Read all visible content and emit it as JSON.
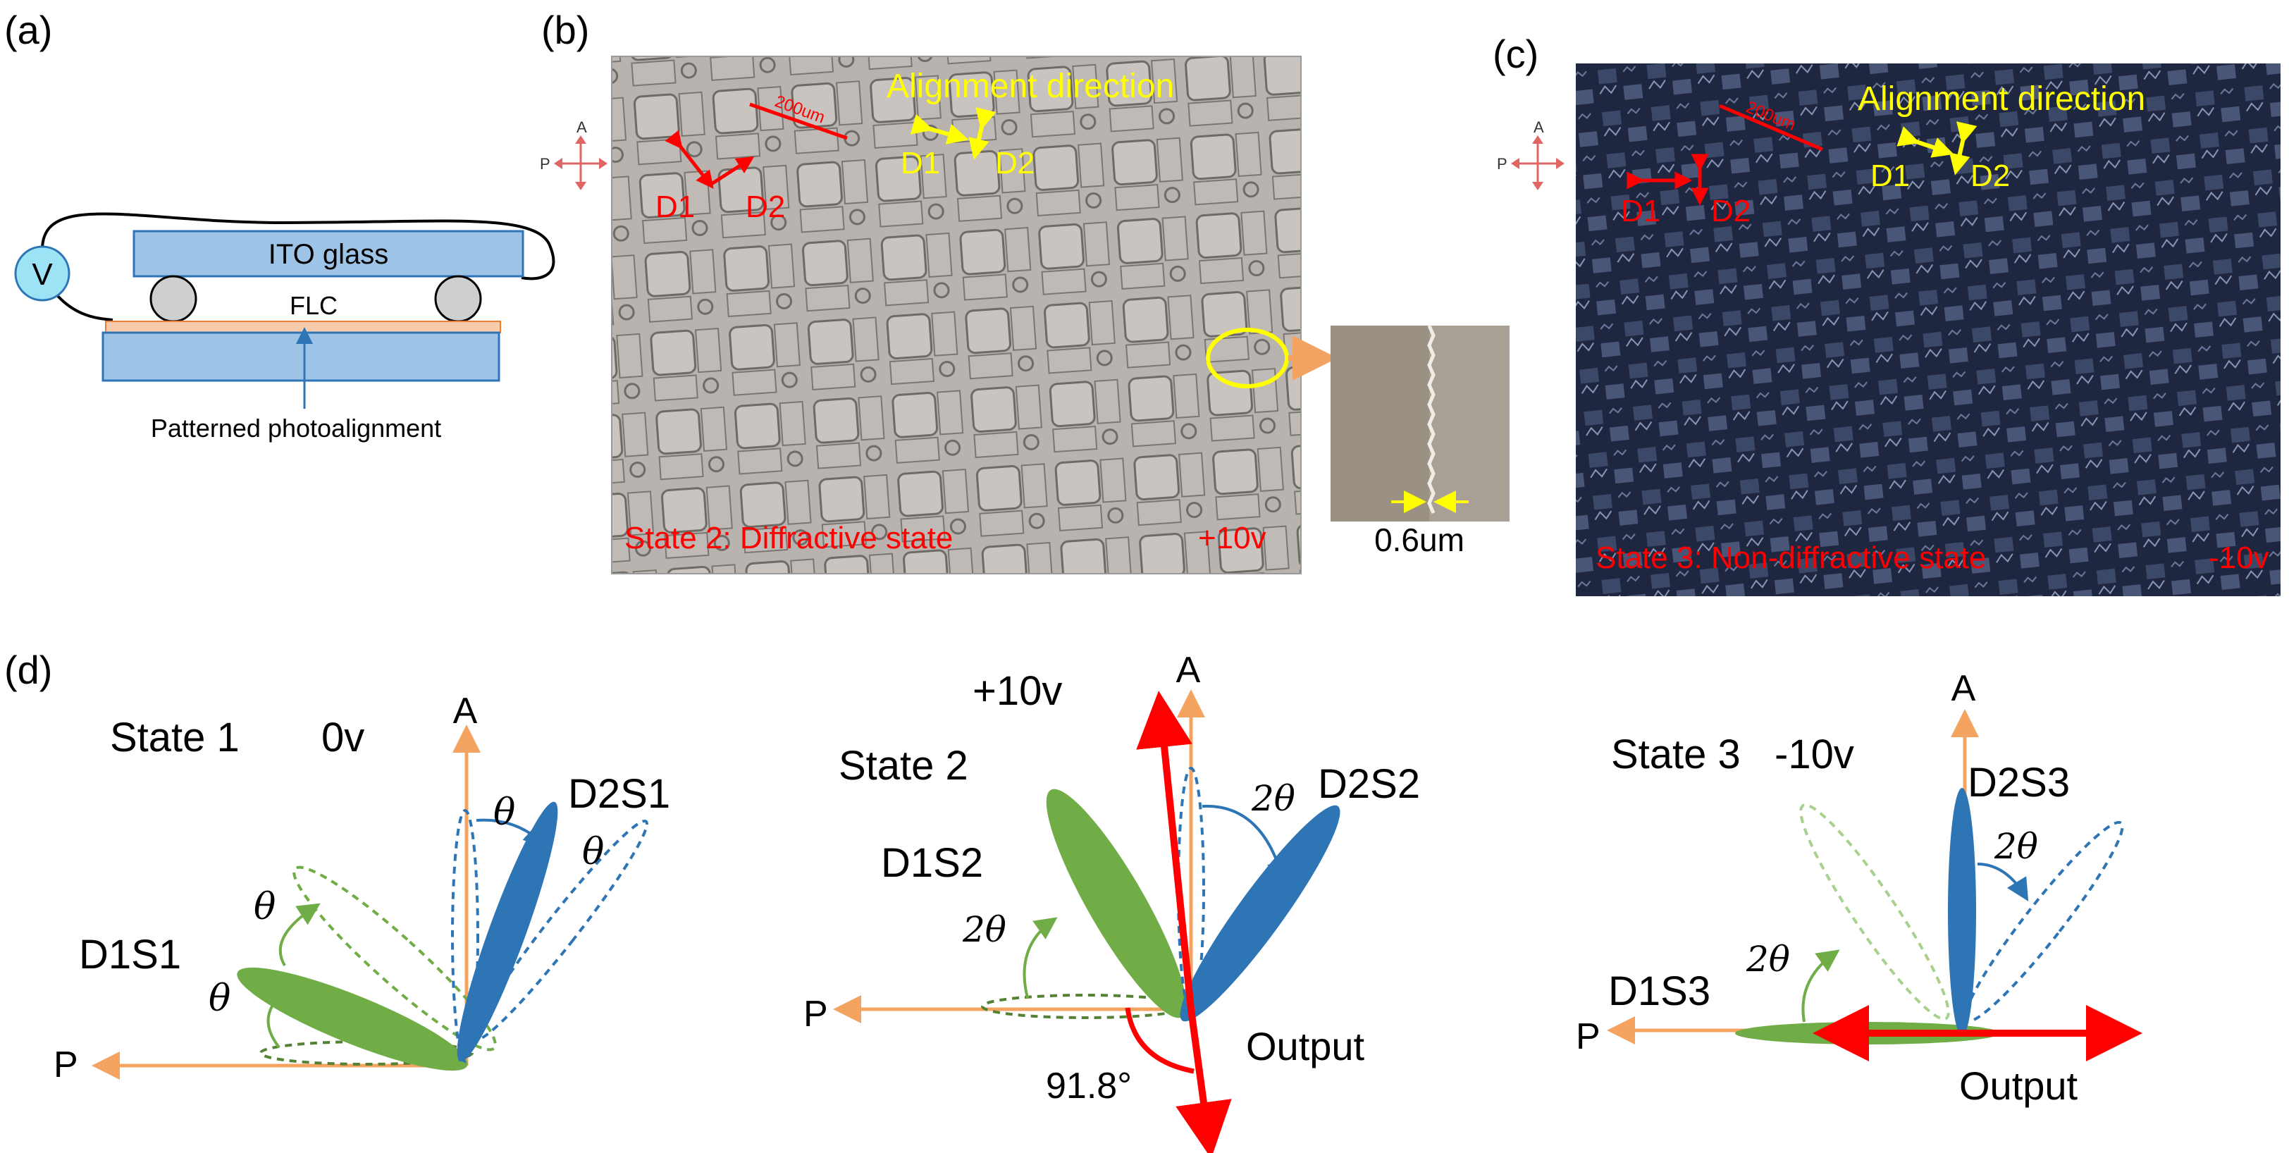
{
  "panel_labels": {
    "a": "(a)",
    "b": "(b)",
    "c": "(c)",
    "d": "(d)"
  },
  "panel_a": {
    "voltage": "V",
    "top_glass": "ITO glass",
    "flc": "FLC",
    "callout": "Patterned photoalignment"
  },
  "panel_b": {
    "scale": "200um",
    "align_title": "Alignment direction",
    "d1": "D1",
    "d2": "D2",
    "red_d1": "D1",
    "red_d2": "D2",
    "state": "State 2: Diffractive state",
    "voltage": "+10v",
    "inset_gap": "0.6um",
    "pol_a": "A",
    "pol_p": "P"
  },
  "panel_c": {
    "scale": "200um",
    "align_title": "Alignment direction",
    "d1": "D1",
    "d2": "D2",
    "red_d1": "D1",
    "red_d2": "D2",
    "state": "State 3: Non-diffractive state",
    "voltage": "-10v",
    "pol_a": "A",
    "pol_p": "P"
  },
  "state1": {
    "title": "State 1",
    "voltage": "0v",
    "A": "A",
    "P": "P",
    "d1": "D1S1",
    "d2": "D2S1",
    "theta": "θ"
  },
  "state2": {
    "title": "State 2",
    "voltage": "+10v",
    "A": "A",
    "P": "P",
    "d1": "D1S2",
    "d2": "D2S2",
    "two_theta": "2θ",
    "angle": "91.8°",
    "output": "Output"
  },
  "state3": {
    "title": "State 3",
    "voltage": "-10v",
    "A": "A",
    "P": "P",
    "d1": "D1S3",
    "d2": "D2S3",
    "two_theta": "2θ",
    "output": "Output"
  },
  "colors": {
    "orange": "#f4a460",
    "green": "#70ad47",
    "blue": "#2e75b6",
    "red": "#ff0000",
    "yellow": "#ffff00",
    "glass": "#9dc3e6",
    "flc": "#f8cbad"
  }
}
